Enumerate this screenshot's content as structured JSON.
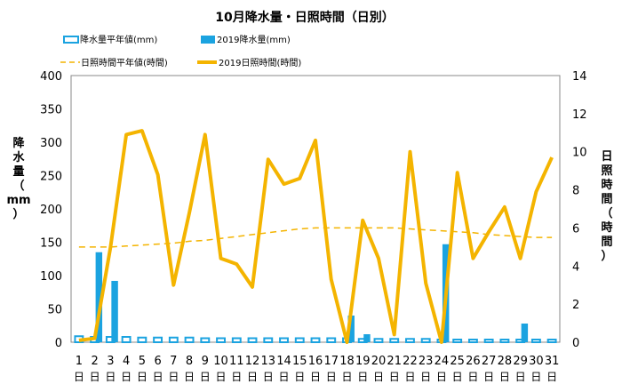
{
  "chart_data": {
    "type": "bar",
    "title": "10月降水量・日照時間（日別）",
    "x": [
      1,
      2,
      3,
      4,
      5,
      6,
      7,
      8,
      9,
      10,
      11,
      12,
      13,
      14,
      15,
      16,
      17,
      18,
      19,
      20,
      21,
      22,
      23,
      24,
      25,
      26,
      27,
      28,
      29,
      30,
      31
    ],
    "x_suffix": "日",
    "ylabel_left": [
      "降",
      "水",
      "量",
      "（",
      "mm",
      "）"
    ],
    "ylabel_right": [
      "日",
      "照",
      "時",
      "間",
      "（",
      "時",
      "間",
      "）"
    ],
    "ylim_left": [
      0,
      400
    ],
    "yticks_left": [
      0,
      50,
      100,
      150,
      200,
      250,
      300,
      350,
      400
    ],
    "ylim_right": [
      0,
      14
    ],
    "yticks_right": [
      0,
      2,
      4,
      6,
      8,
      10,
      12,
      14
    ],
    "grid": false,
    "legend_position": "top-left",
    "series": [
      {
        "name": "降水量平年値(mm)",
        "kind": "bar-hollow",
        "axis": "left",
        "color": "#1ba3e0",
        "values": [
          9,
          8,
          8,
          8,
          7,
          7,
          7,
          7,
          6,
          6,
          6,
          6,
          6,
          6,
          6,
          6,
          6,
          6,
          5,
          5,
          5,
          5,
          5,
          4,
          4,
          4,
          4,
          4,
          4,
          4,
          4
        ]
      },
      {
        "name": "2019降水量(mm)",
        "kind": "bar",
        "axis": "left",
        "color": "#1ba3e0",
        "values": [
          0,
          135,
          92,
          0,
          0,
          0,
          0,
          0,
          0,
          0,
          0,
          0,
          0,
          0,
          0,
          0,
          0,
          40,
          12,
          0,
          0,
          0,
          0,
          147,
          0,
          0,
          0,
          0,
          28,
          0,
          0
        ]
      },
      {
        "name": "日照時間平年値(時間)",
        "kind": "line-dashed",
        "axis": "right",
        "color": "#f4b400",
        "values": [
          5.0,
          5.0,
          5.0,
          5.05,
          5.1,
          5.15,
          5.2,
          5.3,
          5.35,
          5.45,
          5.55,
          5.65,
          5.75,
          5.85,
          5.95,
          6.0,
          6.0,
          6.0,
          6.0,
          6.0,
          6.0,
          5.95,
          5.9,
          5.85,
          5.8,
          5.75,
          5.65,
          5.6,
          5.55,
          5.5,
          5.5
        ]
      },
      {
        "name": "2019日照時間(時間)",
        "kind": "line",
        "axis": "right",
        "color": "#f4b400",
        "values": [
          0.1,
          0.2,
          5.0,
          10.9,
          11.1,
          8.8,
          3.0,
          6.8,
          10.9,
          4.4,
          4.1,
          2.9,
          9.6,
          8.3,
          8.6,
          10.6,
          3.3,
          0.0,
          6.4,
          4.4,
          0.4,
          10.0,
          3.1,
          0.0,
          8.9,
          4.4,
          5.8,
          7.1,
          4.4,
          7.9,
          9.7
        ]
      }
    ]
  }
}
